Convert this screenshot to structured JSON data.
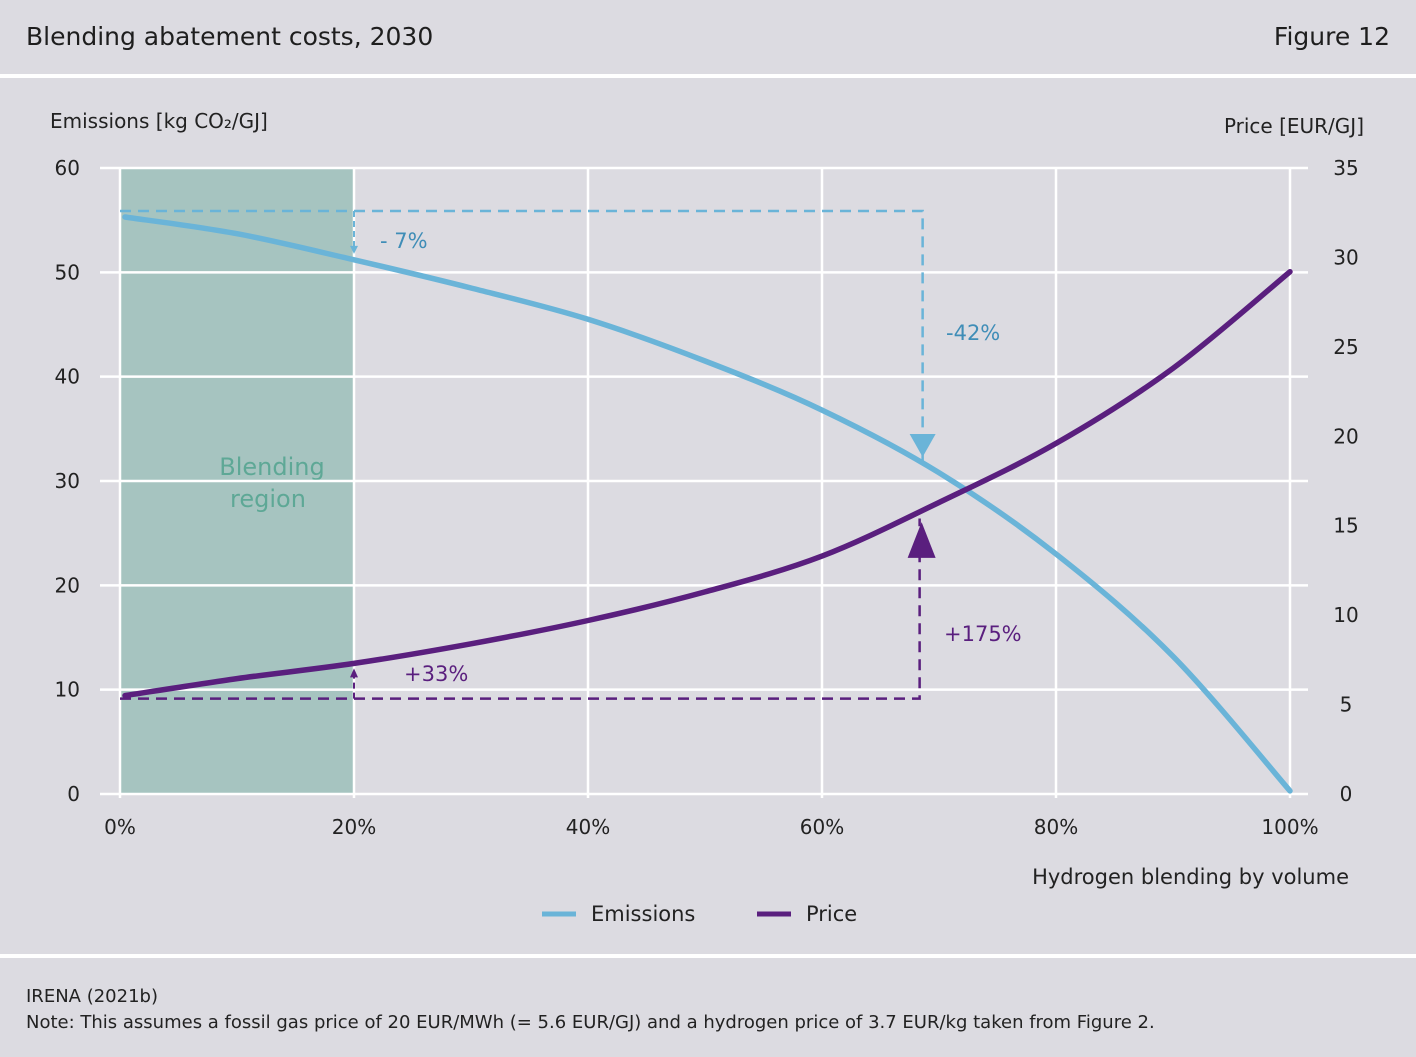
{
  "header": {
    "title": "Blending abatement costs, 2030",
    "figure_label": "Figure 12"
  },
  "chart_data": {
    "type": "line",
    "xlabel": "Hydrogen blending by volume",
    "ylabel_left": "Emissions [kg CO₂/GJ]",
    "ylabel_right": "Price [EUR/GJ]",
    "x_ticks": [
      "0%",
      "20%",
      "40%",
      "60%",
      "80%",
      "100%"
    ],
    "y_left_ticks": [
      "0",
      "10",
      "20",
      "30",
      "40",
      "50",
      "60"
    ],
    "y_right_ticks": [
      "0",
      "5",
      "10",
      "15",
      "20",
      "25",
      "30",
      "35"
    ],
    "xlim": [
      0,
      100
    ],
    "ylim_left": [
      0,
      60
    ],
    "ylim_right": [
      0,
      35
    ],
    "grid": true,
    "legend_position": "bottom-center",
    "shaded_region": {
      "label_line1": "Blending",
      "label_line2": "region",
      "x_from": 0,
      "x_to": 20,
      "color": "#a6c4c0",
      "text_color": "#5ea896"
    },
    "series": [
      {
        "name": "Emissions",
        "axis": "left",
        "color": "#6ab4d8",
        "x": [
          0,
          10,
          20,
          30,
          40,
          50,
          60,
          70,
          80,
          90,
          100
        ],
        "values": [
          55.3,
          53.7,
          51.2,
          48.5,
          45.5,
          41.5,
          36.8,
          30.8,
          23.0,
          13.2,
          0.3
        ]
      },
      {
        "name": "Price",
        "axis": "right",
        "color": "#5a1f7e",
        "x": [
          0,
          10,
          20,
          30,
          40,
          50,
          60,
          70,
          80,
          90,
          100
        ],
        "values": [
          5.5,
          6.45,
          7.3,
          8.4,
          9.7,
          11.3,
          13.3,
          16.3,
          19.6,
          23.8,
          29.2
        ]
      }
    ],
    "annotations": [
      {
        "text": "- 7%",
        "color": "#3f8db7"
      },
      {
        "text": "-42%",
        "color": "#3f8db7"
      },
      {
        "text": "+33%",
        "color": "#5a1f7e"
      },
      {
        "text": "+175%",
        "color": "#5a1f7e"
      }
    ]
  },
  "footer": {
    "source": "IRENA (2021b)",
    "note": "Note: This assumes a fossil gas price of 20 EUR/MWh (= 5.6 EUR/GJ) and a hydrogen price of 3.7 EUR/kg taken from Figure 2."
  }
}
